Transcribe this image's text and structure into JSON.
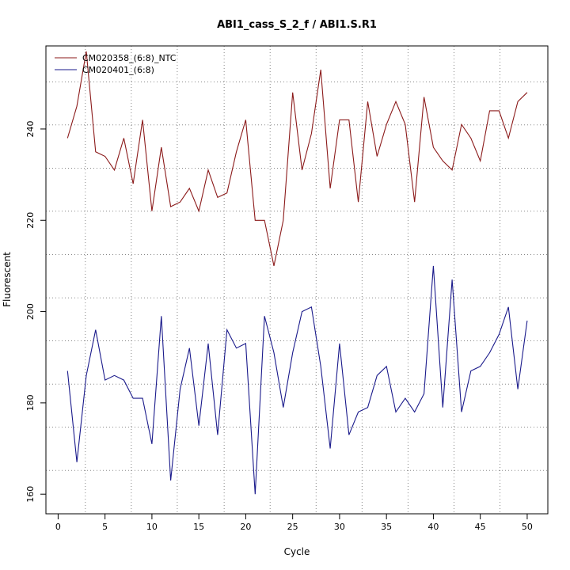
{
  "chart_data": {
    "type": "line",
    "title": "ABI1_cass_S_2_f / ABI1.S.R1",
    "xlabel": "Cycle",
    "ylabel": "Fluorescent",
    "xlim": [
      -1.3,
      52.2
    ],
    "ylim": [
      155.7,
      258.2
    ],
    "x_ticks": [
      0,
      5,
      10,
      15,
      20,
      25,
      30,
      35,
      40,
      45,
      50
    ],
    "y_ticks": [
      160,
      180,
      200,
      220,
      240
    ],
    "vertical_grid": [
      2.9,
      7.8,
      12.7,
      17.7,
      22.6,
      27.5,
      32.4,
      37.3,
      42.2,
      47.1
    ],
    "horizontal_grid": [
      165.2,
      174.7,
      184.1,
      193.6,
      203.0,
      212.5,
      222.0,
      231.4,
      240.9,
      250.3
    ],
    "legend_position": "top-left",
    "series": [
      {
        "name": "CM020358_(6:8)_NTC",
        "color": "#8b1a1a",
        "x": [
          1,
          2,
          3,
          4,
          5,
          6,
          7,
          8,
          9,
          10,
          11,
          12,
          13,
          14,
          15,
          16,
          17,
          18,
          19,
          20,
          21,
          22,
          23,
          24,
          25,
          26,
          27,
          28,
          29,
          30,
          31,
          32,
          33,
          34,
          35,
          36,
          37,
          38,
          39,
          40,
          41,
          42,
          43,
          44,
          45,
          46,
          47,
          48,
          49,
          50
        ],
        "values": [
          238,
          245,
          257,
          235,
          234,
          231,
          238,
          228,
          242,
          222,
          236,
          223,
          224,
          227,
          222,
          231,
          225,
          226,
          235,
          242,
          220,
          220,
          210,
          220,
          248,
          231,
          239,
          253,
          227,
          242,
          242,
          224,
          246,
          234,
          241,
          246,
          241,
          224,
          247,
          236,
          233,
          231,
          241,
          238,
          233,
          244,
          244,
          238,
          246,
          248
        ]
      },
      {
        "name": "CM020401_(6:8)",
        "color": "#1a1a8b",
        "x": [
          1,
          2,
          3,
          4,
          5,
          6,
          7,
          8,
          9,
          10,
          11,
          12,
          13,
          14,
          15,
          16,
          17,
          18,
          19,
          20,
          21,
          22,
          23,
          24,
          25,
          26,
          27,
          28,
          29,
          30,
          31,
          32,
          33,
          34,
          35,
          36,
          37,
          38,
          39,
          40,
          41,
          42,
          43,
          44,
          45,
          46,
          47,
          48,
          49,
          50
        ],
        "values": [
          187,
          167,
          186,
          196,
          185,
          186,
          185,
          181,
          181,
          171,
          199,
          163,
          183,
          192,
          175,
          193,
          173,
          196,
          192,
          193,
          160,
          199,
          191,
          179,
          191,
          200,
          201,
          188,
          170,
          193,
          173,
          178,
          179,
          186,
          188,
          178,
          181,
          178,
          182,
          210,
          179,
          207,
          178,
          187,
          188,
          191,
          195,
          201,
          183,
          198
        ]
      }
    ]
  }
}
